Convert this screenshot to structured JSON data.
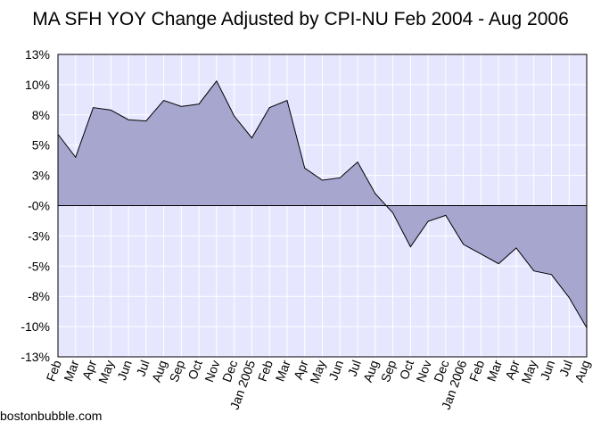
{
  "chart_data": {
    "type": "area",
    "title": "MA SFH YOY Change Adjusted by CPI-NU Feb 2004 - Aug 2006",
    "source": "bostonbubble.com",
    "categories": [
      "Feb",
      "Mar",
      "Apr",
      "May",
      "Jun",
      "Jul",
      "Aug",
      "Sep",
      "Oct",
      "Nov",
      "Dec",
      "Jan 2005",
      "Feb",
      "Mar",
      "Apr",
      "May",
      "Jun",
      "Jul",
      "Aug",
      "Sep",
      "Oct",
      "Nov",
      "Dec",
      "Jan 2006",
      "Feb",
      "Mar",
      "Apr",
      "May",
      "Jun",
      "Jul",
      "Aug"
    ],
    "values": [
      5.9,
      4.0,
      8.1,
      7.9,
      7.1,
      7.0,
      8.7,
      8.2,
      8.4,
      10.3,
      7.4,
      5.6,
      8.1,
      8.7,
      3.1,
      2.1,
      2.3,
      3.6,
      1.0,
      -0.6,
      -3.4,
      -1.3,
      -0.8,
      -3.2,
      -4.0,
      -4.8,
      -3.5,
      -5.4,
      -5.7,
      -7.6,
      -10.1
    ],
    "color": "#a6a6cf",
    "line_color": "#000000",
    "plot_background": "#e6e6ff",
    "grid": true,
    "ylim": [
      -12.5,
      12.5
    ],
    "yticks": [
      {
        "value": 12.5,
        "label": "13%"
      },
      {
        "value": 10,
        "label": "10%"
      },
      {
        "value": 7.5,
        "label": "8%"
      },
      {
        "value": 5,
        "label": "5%"
      },
      {
        "value": 2.5,
        "label": "3%"
      },
      {
        "value": 0,
        "label": "-0%"
      },
      {
        "value": -2.5,
        "label": "-3%"
      },
      {
        "value": -5,
        "label": "-5%"
      },
      {
        "value": -7.5,
        "label": "-8%"
      },
      {
        "value": -10,
        "label": "-10%"
      },
      {
        "value": -12.5,
        "label": "-13%"
      }
    ]
  }
}
